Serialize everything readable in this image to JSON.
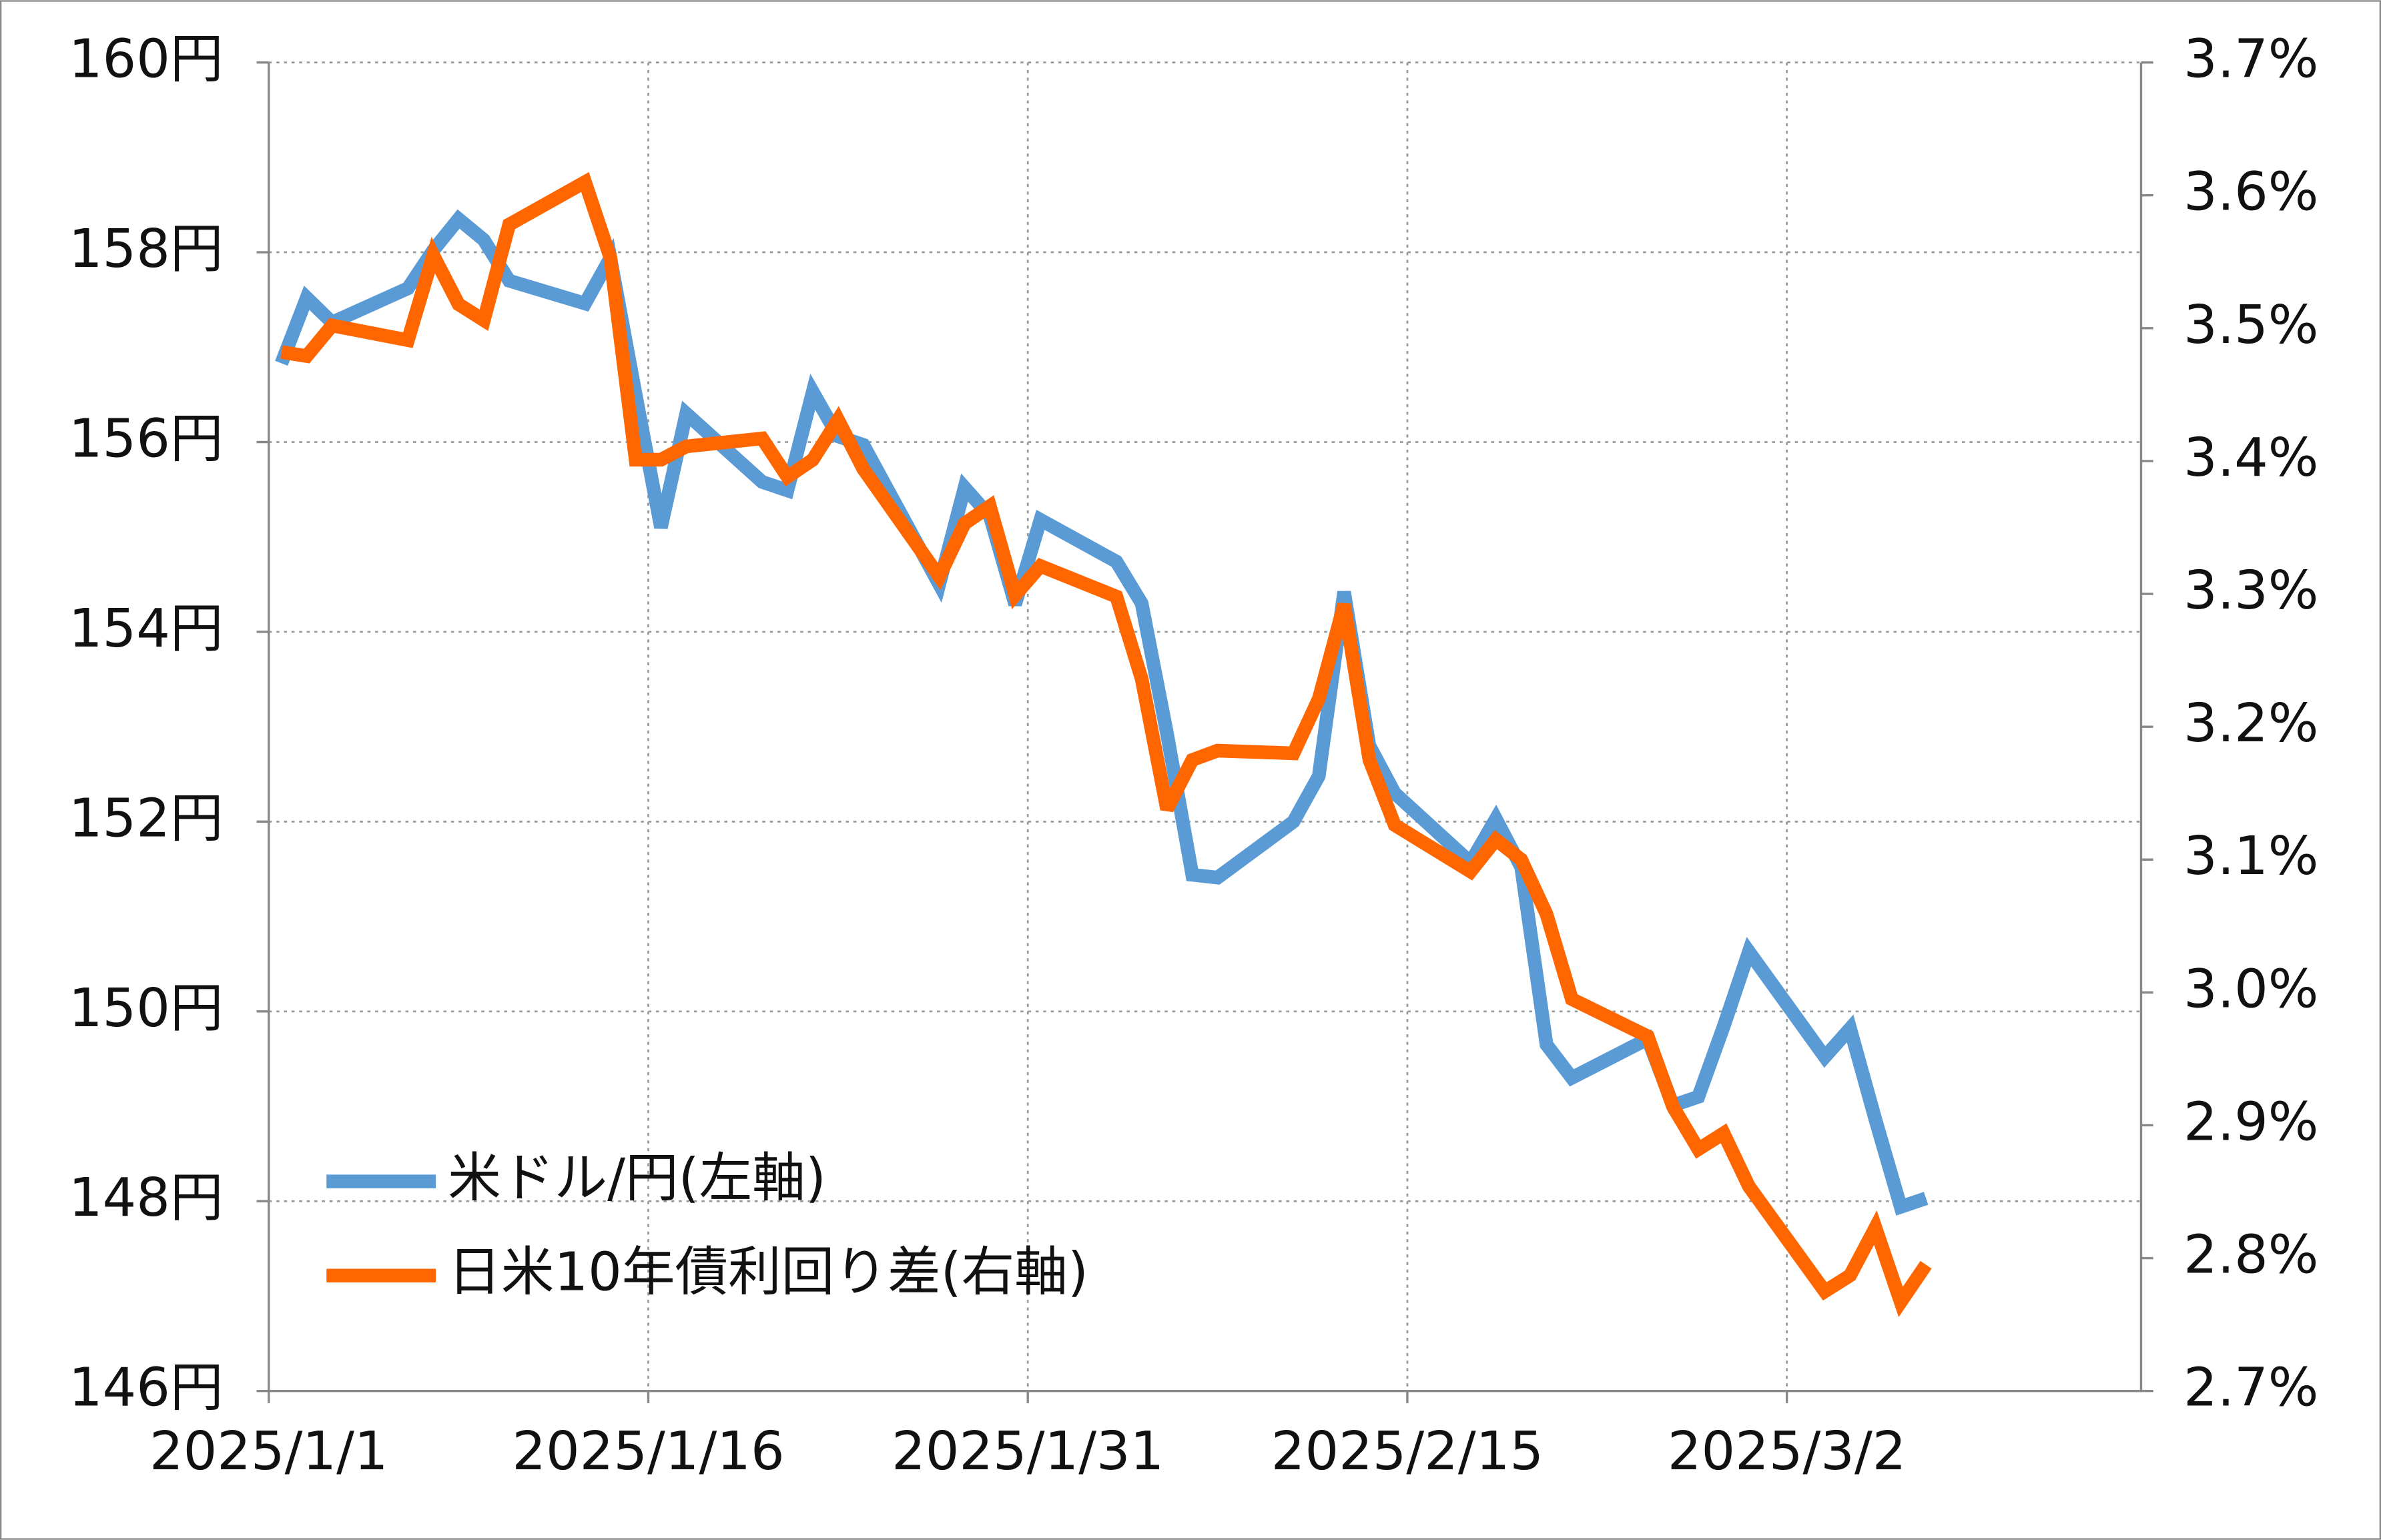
{
  "chart_data": {
    "type": "line",
    "x": [
      "2025/1/1",
      "2025/1/2",
      "2025/1/3",
      "2025/1/6",
      "2025/1/7",
      "2025/1/8",
      "2025/1/9",
      "2025/1/10",
      "2025/1/13",
      "2025/1/14",
      "2025/1/15",
      "2025/1/16",
      "2025/1/17",
      "2025/1/18",
      "2025/1/20",
      "2025/1/21",
      "2025/1/22",
      "2025/1/23",
      "2025/1/24",
      "2025/1/27",
      "2025/1/28",
      "2025/1/29",
      "2025/1/30",
      "2025/1/31",
      "2025/2/3",
      "2025/2/4",
      "2025/2/5",
      "2025/2/6",
      "2025/2/7",
      "2025/2/10",
      "2025/2/11",
      "2025/2/12",
      "2025/2/13",
      "2025/2/14",
      "2025/2/17",
      "2025/2/18",
      "2025/2/19",
      "2025/2/20",
      "2025/2/21",
      "2025/2/24",
      "2025/2/25",
      "2025/2/26",
      "2025/2/27",
      "2025/2/28",
      "2025/3/3",
      "2025/3/4",
      "2025/3/5",
      "2025/3/6",
      "2025/3/7"
    ],
    "series": [
      {
        "name": "米ドル/円(左軸)",
        "color": "#5b9bd5",
        "values": [
          156.83,
          157.52,
          157.26,
          157.62,
          158.02,
          158.35,
          158.13,
          157.7,
          157.46,
          157.94,
          156.5,
          155.1,
          156.3,
          156.06,
          155.58,
          155.49,
          156.53,
          156.06,
          155.97,
          154.5,
          155.52,
          155.22,
          154.29,
          155.18,
          154.74,
          154.3,
          152.93,
          151.44,
          151.41,
          152.0,
          152.48,
          154.42,
          152.8,
          152.3,
          151.57,
          152.03,
          151.52,
          149.65,
          149.3,
          149.71,
          149.01,
          149.1,
          149.84,
          150.63,
          149.52,
          149.82,
          148.86,
          147.94,
          148.03
        ]
      },
      {
        "name": "日米10年債利回り差(右軸)",
        "color": "#ff6600",
        "axis": "y2",
        "values": [
          3.482,
          3.479,
          3.502,
          3.491,
          3.555,
          3.518,
          3.506,
          3.578,
          3.61,
          3.553,
          3.401,
          3.401,
          3.411,
          3.413,
          3.417,
          3.388,
          3.401,
          3.431,
          3.394,
          3.313,
          3.353,
          3.366,
          3.299,
          3.321,
          3.298,
          3.236,
          3.138,
          3.175,
          3.182,
          3.18,
          3.221,
          3.292,
          3.175,
          3.126,
          3.091,
          3.115,
          3.1,
          3.059,
          2.995,
          2.967,
          2.914,
          2.882,
          2.894,
          2.854,
          2.775,
          2.787,
          2.823,
          2.767,
          2.795
        ]
      }
    ],
    "xlim": [
      "2025/1/1",
      "2025/3/16"
    ],
    "xticks": [
      "2025/1/1",
      "2025/1/16",
      "2025/1/31",
      "2025/2/15",
      "2025/3/2"
    ],
    "ylim": [
      146,
      160
    ],
    "yticks": [
      {
        "value": 146,
        "label": "146円"
      },
      {
        "value": 148,
        "label": "148円"
      },
      {
        "value": 150,
        "label": "150円"
      },
      {
        "value": 152,
        "label": "152円"
      },
      {
        "value": 154,
        "label": "154円"
      },
      {
        "value": 156,
        "label": "156円"
      },
      {
        "value": 158,
        "label": "158円"
      },
      {
        "value": 160,
        "label": "160円"
      }
    ],
    "y2lim": [
      2.7,
      3.7
    ],
    "y2ticks": [
      {
        "value": 2.7,
        "label": "2.7%"
      },
      {
        "value": 2.8,
        "label": "2.8%"
      },
      {
        "value": 2.9,
        "label": "2.9%"
      },
      {
        "value": 3.0,
        "label": "3.0%"
      },
      {
        "value": 3.1,
        "label": "3.1%"
      },
      {
        "value": 3.2,
        "label": "3.2%"
      },
      {
        "value": 3.3,
        "label": "3.3%"
      },
      {
        "value": 3.4,
        "label": "3.4%"
      },
      {
        "value": 3.5,
        "label": "3.5%"
      },
      {
        "value": 3.6,
        "label": "3.6%"
      },
      {
        "value": 3.7,
        "label": "3.7%"
      }
    ],
    "grid": true,
    "legend": "lower left"
  }
}
